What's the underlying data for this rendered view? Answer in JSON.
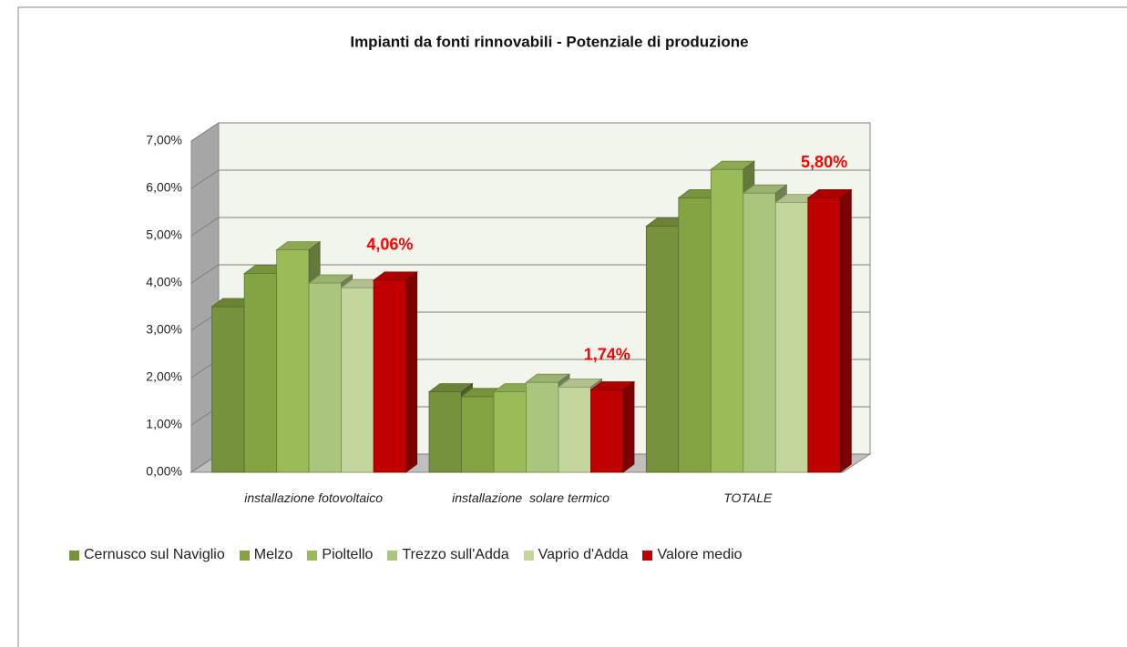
{
  "chart_data": {
    "type": "bar3d",
    "title": "Impianti da fonti rinnovabili -  Potenziale di  produzione",
    "categories": [
      "installazione fotovoltaico",
      "installazione  solare termico",
      "TOTALE"
    ],
    "series": [
      {
        "name": "Cernusco sul Naviglio",
        "color": "#76923c",
        "values": [
          3.5,
          1.7,
          5.2
        ]
      },
      {
        "name": "Melzo",
        "color": "#84a444",
        "values": [
          4.2,
          1.6,
          5.8
        ]
      },
      {
        "name": "Pioltello",
        "color": "#9bbb59",
        "values": [
          4.7,
          1.7,
          6.4
        ]
      },
      {
        "name": "Trezzo sull'Adda",
        "color": "#aac67c",
        "values": [
          4.0,
          1.9,
          5.9
        ]
      },
      {
        "name": "Vaprio d'Adda",
        "color": "#c3d69b",
        "values": [
          3.9,
          1.8,
          5.7
        ]
      },
      {
        "name": "Valore medio",
        "color": "#c00000",
        "values": [
          4.06,
          1.74,
          5.8
        ],
        "value_labels": [
          "4,06%",
          "1,74%",
          "5,80%"
        ]
      }
    ],
    "ylim": [
      0,
      7
    ],
    "yticks": [
      {
        "value": 0,
        "label": "0,00%"
      },
      {
        "value": 1,
        "label": "1,00%"
      },
      {
        "value": 2,
        "label": "2,00%"
      },
      {
        "value": 3,
        "label": "3,00%"
      },
      {
        "value": 4,
        "label": "4,00%"
      },
      {
        "value": 5,
        "label": "5,00%"
      },
      {
        "value": 6,
        "label": "6,00%"
      },
      {
        "value": 7,
        "label": "7,00%"
      }
    ],
    "grid": true,
    "legend": "bottom"
  }
}
